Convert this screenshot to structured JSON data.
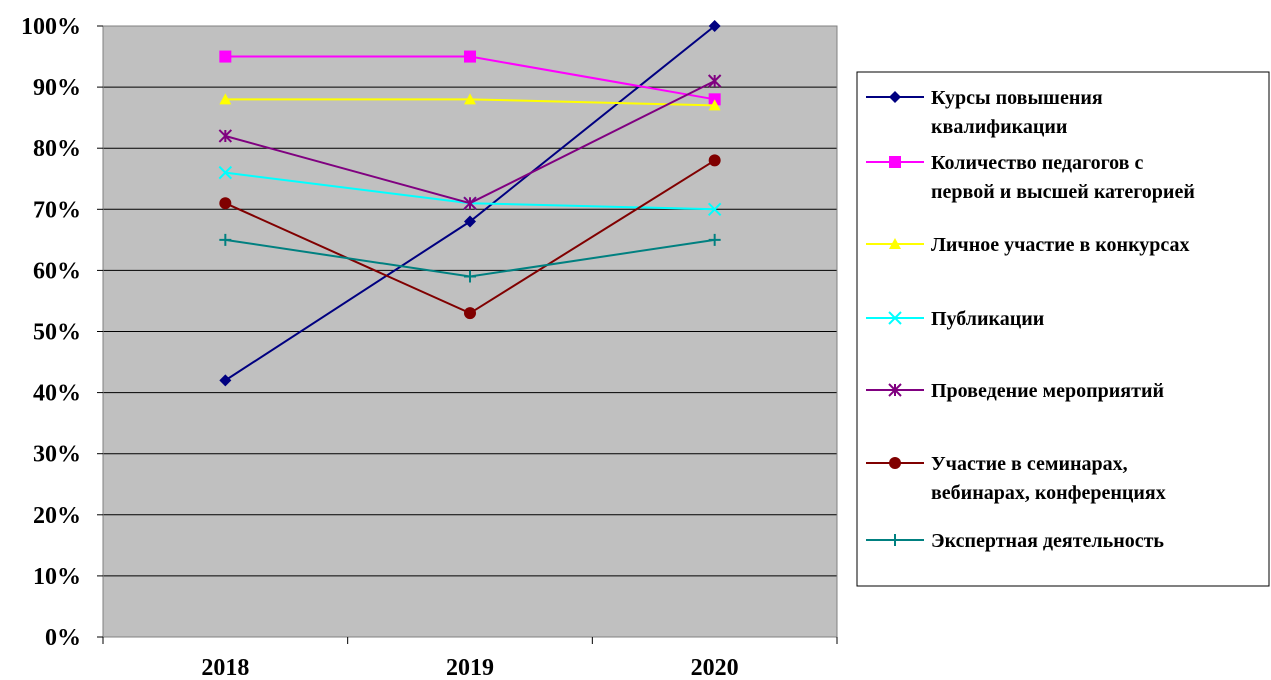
{
  "chart_data": {
    "type": "line",
    "title": "",
    "xlabel": "",
    "ylabel": "",
    "categories": [
      "2018",
      "2019",
      "2020"
    ],
    "ylim": [
      0,
      100
    ],
    "y_ticks": [
      "0%",
      "10%",
      "20%",
      "30%",
      "40%",
      "50%",
      "60%",
      "70%",
      "80%",
      "90%",
      "100%"
    ],
    "grid": true,
    "legend_position": "right",
    "plot_background": "#c0c0c0",
    "series": [
      {
        "name": "Курсы повышения квалификации",
        "legend_lines": [
          "Курсы повышения",
          "квалификации"
        ],
        "values": [
          42,
          68,
          100
        ],
        "color": "#000080",
        "marker": "diamond"
      },
      {
        "name": "Количество педагогов с первой и высшей категорией",
        "legend_lines": [
          "Количество педагогов с",
          "первой и высшей категорией"
        ],
        "values": [
          95,
          95,
          88
        ],
        "color": "#ff00ff",
        "marker": "square"
      },
      {
        "name": "Личное участие в конкурсах",
        "legend_lines": [
          "Личное участие в конкурсах"
        ],
        "values": [
          88,
          88,
          87
        ],
        "color": "#ffff00",
        "marker": "triangle"
      },
      {
        "name": "Публикации",
        "legend_lines": [
          "Публикации"
        ],
        "values": [
          76,
          71,
          70
        ],
        "color": "#00ffff",
        "marker": "x"
      },
      {
        "name": "Проведение мероприятий",
        "legend_lines": [
          "Проведение мероприятий"
        ],
        "values": [
          82,
          71,
          91
        ],
        "color": "#800080",
        "marker": "star"
      },
      {
        "name": "Участие в семинарах, вебинарах, конференциях",
        "legend_lines": [
          "Участие в семинарах,",
          "вебинарах, конференциях"
        ],
        "values": [
          71,
          53,
          78
        ],
        "color": "#800000",
        "marker": "circle"
      },
      {
        "name": "Экспертная деятельность",
        "legend_lines": [
          "Экспертная деятельность"
        ],
        "values": [
          65,
          59,
          65
        ],
        "color": "#008080",
        "marker": "plus"
      }
    ]
  }
}
